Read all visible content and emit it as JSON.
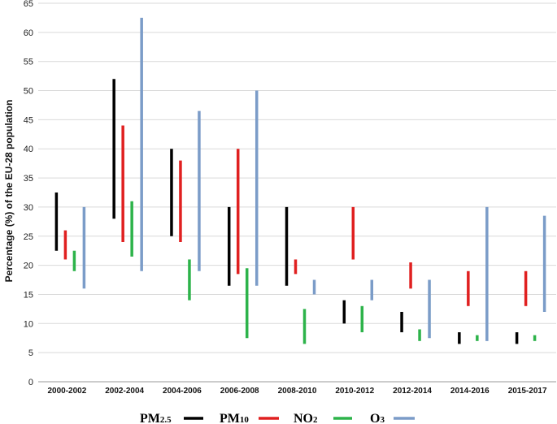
{
  "chart_data": {
    "type": "bar",
    "subtype": "floating-range",
    "ylabel": "Percentage (%) of the EU-28 population",
    "ylim": [
      0,
      65
    ],
    "yticks": [
      0,
      5,
      10,
      15,
      20,
      25,
      30,
      35,
      40,
      45,
      50,
      55,
      60,
      65
    ],
    "grid": true,
    "legend_position": "bottom",
    "categories": [
      "2000-2002",
      "2002-2004",
      "2004-2006",
      "2006-2008",
      "2008-2010",
      "2010-2012",
      "2012-2014",
      "2014-2016",
      "2015-2017"
    ],
    "series": [
      {
        "name": "PM",
        "name_sub": "2.5",
        "color": "#000000",
        "ranges": [
          [
            22.5,
            32.5
          ],
          [
            28,
            52
          ],
          [
            25,
            40
          ],
          [
            16.5,
            30
          ],
          [
            16.5,
            30
          ],
          [
            10,
            14
          ],
          [
            8.5,
            12
          ],
          [
            6.5,
            8.5
          ],
          [
            6.5,
            8.5
          ]
        ]
      },
      {
        "name": "PM",
        "name_sub": "10",
        "color": "#e02020",
        "ranges": [
          [
            21,
            26
          ],
          [
            24,
            44
          ],
          [
            24,
            38
          ],
          [
            18.5,
            40
          ],
          [
            18.5,
            21
          ],
          [
            21,
            30
          ],
          [
            16,
            20.5
          ],
          [
            13,
            19
          ],
          [
            13,
            19
          ]
        ]
      },
      {
        "name": "NO",
        "name_sub": "2",
        "color": "#2db34a",
        "ranges": [
          [
            19,
            22.5
          ],
          [
            21.5,
            31
          ],
          [
            14,
            21
          ],
          [
            7.5,
            19.5
          ],
          [
            6.5,
            12.5
          ],
          [
            8.5,
            13
          ],
          [
            7,
            9
          ],
          [
            7,
            8
          ],
          [
            7,
            8
          ]
        ]
      },
      {
        "name": "O",
        "name_sub": "3",
        "color": "#7b9cc8",
        "ranges": [
          [
            16,
            30
          ],
          [
            19,
            62.5
          ],
          [
            19,
            46.5
          ],
          [
            16.5,
            50
          ],
          [
            15,
            17.5
          ],
          [
            14,
            17.5
          ],
          [
            7.5,
            17.5
          ],
          [
            7,
            30
          ],
          [
            12,
            28.5
          ]
        ]
      }
    ]
  }
}
